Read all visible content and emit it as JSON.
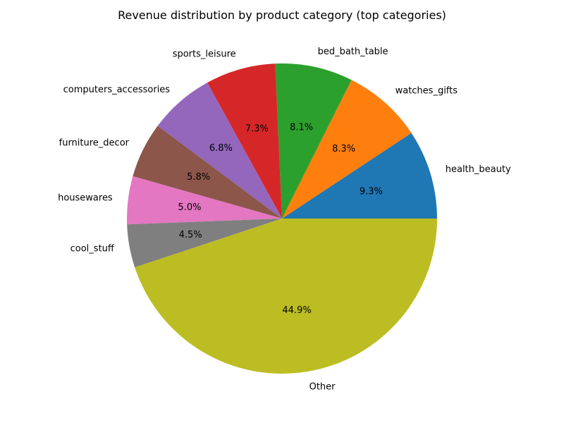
{
  "chart_data": {
    "type": "pie",
    "title": "Revenue distribution by product category (top categories)",
    "start_angle_deg": 0,
    "direction": "counterclockwise",
    "slices": [
      {
        "label": "health_beauty",
        "value": 9.3,
        "pct_label": "9.3%",
        "color": "#1f77b4"
      },
      {
        "label": "watches_gifts",
        "value": 8.3,
        "pct_label": "8.3%",
        "color": "#ff7f0e"
      },
      {
        "label": "bed_bath_table",
        "value": 8.1,
        "pct_label": "8.1%",
        "color": "#2ca02c"
      },
      {
        "label": "sports_leisure",
        "value": 7.3,
        "pct_label": "7.3%",
        "color": "#d62728"
      },
      {
        "label": "computers_accessories",
        "value": 6.8,
        "pct_label": "6.8%",
        "color": "#9467bd"
      },
      {
        "label": "furniture_decor",
        "value": 5.8,
        "pct_label": "5.8%",
        "color": "#8c564b"
      },
      {
        "label": "housewares",
        "value": 5.0,
        "pct_label": "5.0%",
        "color": "#e377c2"
      },
      {
        "label": "cool_stuff",
        "value": 4.5,
        "pct_label": "4.5%",
        "color": "#7f7f7f"
      },
      {
        "label": "Other",
        "value": 44.9,
        "pct_label": "44.9%",
        "color": "#bcbd22"
      }
    ]
  }
}
